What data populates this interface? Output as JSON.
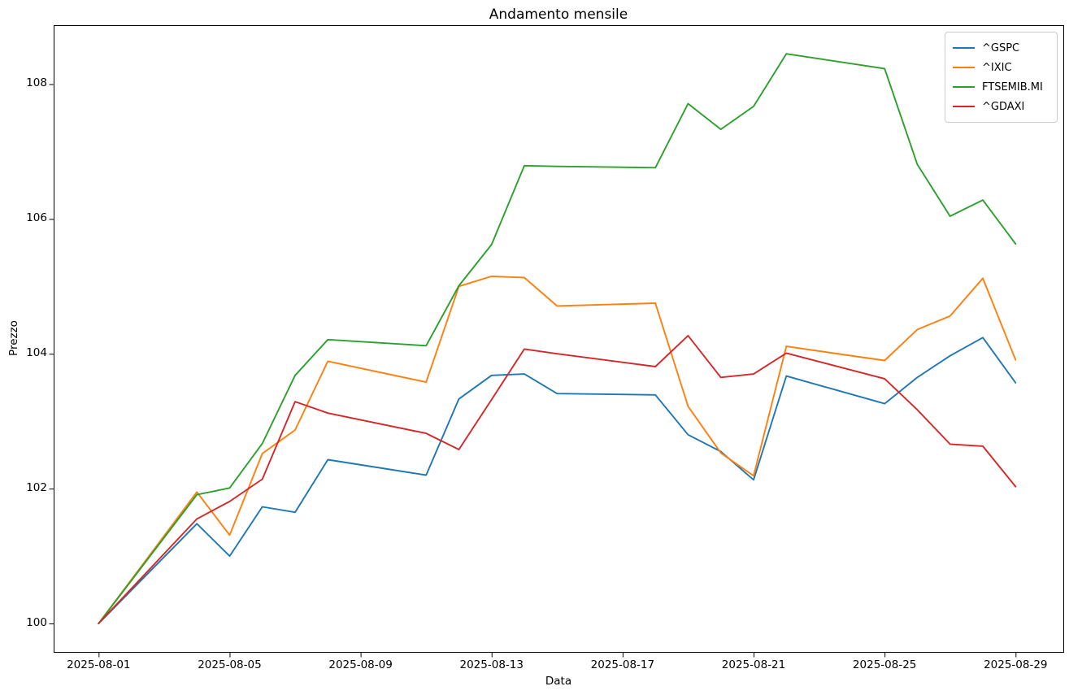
{
  "chart_data": {
    "type": "line",
    "title": "Andamento mensile",
    "xlabel": "Data",
    "ylabel": "Prezzo",
    "grid": false,
    "legend_position": "top-right",
    "x_dates": [
      "2025-08-01",
      "2025-08-04",
      "2025-08-05",
      "2025-08-06",
      "2025-08-07",
      "2025-08-08",
      "2025-08-11",
      "2025-08-12",
      "2025-08-13",
      "2025-08-14",
      "2025-08-15",
      "2025-08-18",
      "2025-08-19",
      "2025-08-20",
      "2025-08-21",
      "2025-08-22",
      "2025-08-25",
      "2025-08-26",
      "2025-08-27",
      "2025-08-28",
      "2025-08-29"
    ],
    "series": [
      {
        "name": "^GSPC",
        "color": "#1f77b4",
        "values": [
          100.0,
          101.48,
          101.0,
          101.73,
          101.65,
          102.43,
          102.2,
          103.33,
          103.68,
          103.7,
          103.41,
          103.39,
          102.8,
          102.55,
          102.13,
          103.67,
          103.26,
          103.65,
          103.97,
          104.24,
          103.57
        ]
      },
      {
        "name": "^IXIC",
        "color": "#ff7f0e",
        "values": [
          100.0,
          101.95,
          101.31,
          102.52,
          102.87,
          103.89,
          103.58,
          105.0,
          105.15,
          105.13,
          104.71,
          104.75,
          103.22,
          102.53,
          102.19,
          104.11,
          103.9,
          104.36,
          104.56,
          105.12,
          103.91
        ]
      },
      {
        "name": "FTSEMIB.MI",
        "color": "#2ca02c",
        "values": [
          100.0,
          101.91,
          102.01,
          102.67,
          103.68,
          104.21,
          104.12,
          105.01,
          105.62,
          106.79,
          106.78,
          106.76,
          107.71,
          107.33,
          107.67,
          108.45,
          108.23,
          106.81,
          106.04,
          106.28,
          105.63
        ]
      },
      {
        "name": "^GDAXI",
        "color": "#d62728",
        "values": [
          100.0,
          101.55,
          101.81,
          102.14,
          103.29,
          103.12,
          102.82,
          102.58,
          103.32,
          104.07,
          104.0,
          103.81,
          104.27,
          103.65,
          103.7,
          104.01,
          103.63,
          103.17,
          102.66,
          102.63,
          102.03
        ]
      }
    ],
    "x_tick_labels": [
      "2025-08-01",
      "2025-08-05",
      "2025-08-09",
      "2025-08-13",
      "2025-08-17",
      "2025-08-21",
      "2025-08-25",
      "2025-08-29"
    ],
    "y_ticks": [
      100,
      102,
      104,
      106,
      108
    ],
    "ylim": [
      99.578,
      108.874
    ],
    "xlim_days": [
      -1.373,
      29.457
    ]
  }
}
